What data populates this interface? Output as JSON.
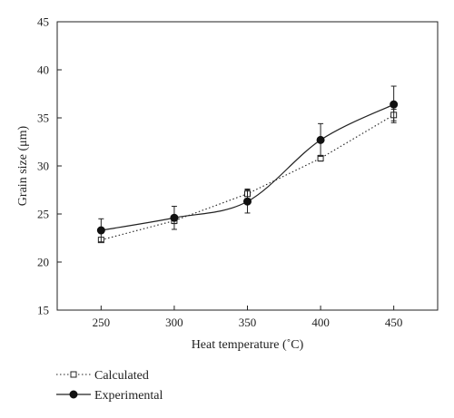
{
  "chart_data": {
    "type": "line",
    "title": "",
    "xlabel": "Heat temperature (˚C)",
    "ylabel": "Grain size (μm)",
    "xlim": [
      220,
      480
    ],
    "ylim": [
      15,
      45
    ],
    "xticks": [
      250,
      300,
      350,
      400,
      450
    ],
    "yticks": [
      15,
      20,
      25,
      30,
      35,
      40,
      45
    ],
    "grid": false,
    "legend_position": "bottom-left",
    "series": [
      {
        "name": "Calculated",
        "line_style": "dotted",
        "marker": "open-square",
        "smooth": false,
        "x": [
          250,
          300,
          350,
          400,
          450
        ],
        "y": [
          22.3,
          24.3,
          27.1,
          30.8,
          35.3
        ],
        "error": [
          0.2,
          0.3,
          0.5,
          0.3,
          0.6
        ]
      },
      {
        "name": "Experimental",
        "line_style": "solid",
        "marker": "filled-circle",
        "smooth": true,
        "x": [
          250,
          300,
          350,
          400,
          450
        ],
        "y": [
          23.3,
          24.6,
          26.3,
          32.7,
          36.4
        ],
        "error": [
          1.2,
          1.2,
          1.2,
          1.7,
          1.9
        ]
      }
    ]
  }
}
